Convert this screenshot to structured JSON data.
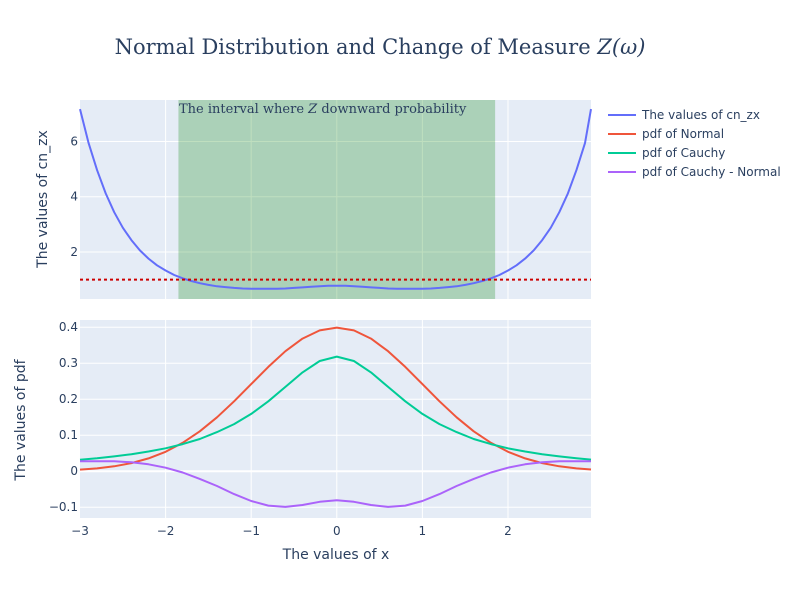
{
  "chart_data": {
    "title_prefix": "Normal Distribution and Change of Measure ",
    "title_math": "Z(ω)",
    "xlabel": "The values of x",
    "xlim": [
      -3,
      2.97
    ],
    "xticks": [
      -3,
      -2,
      -1,
      0,
      1,
      2
    ],
    "xtick_labels": [
      "−3",
      "−2",
      "−1",
      "0",
      "1",
      "2"
    ],
    "legend_position": "top-right",
    "grid": true,
    "colors": {
      "plot_bg": "#e5ecf6",
      "cn_zx": "#636efa",
      "normal": "#ef553b",
      "cauchy": "#00cc96",
      "diff": "#ab63fa",
      "threshold": "#cc0000",
      "band": "rgba(0,128,0,0.25)"
    },
    "legend": [
      {
        "label": "The values of cn_zx",
        "color": "#636efa"
      },
      {
        "label": "pdf of Normal",
        "color": "#ef553b"
      },
      {
        "label": "pdf of Cauchy",
        "color": "#00cc96"
      },
      {
        "label": "pdf of Cauchy - Normal",
        "color": "#ab63fa"
      }
    ],
    "subplots": [
      {
        "type": "line",
        "ylabel": "The values of cn_zx",
        "ylim": [
          0.3,
          7.5
        ],
        "yticks": [
          2,
          4,
          6
        ],
        "ytick_labels": [
          "2",
          "4",
          "6"
        ],
        "threshold_y": 1.0,
        "band_x": [
          -1.85,
          1.85
        ],
        "annotation_prefix": "The interval where ",
        "annotation_math": "Z",
        "annotation_suffix": " downward probability",
        "series": [
          {
            "name": "The values of cn_zx",
            "color": "#636efa",
            "x": [
              -3.0,
              -2.9,
              -2.8,
              -2.7,
              -2.6,
              -2.5,
              -2.4,
              -2.3,
              -2.2,
              -2.1,
              -2.0,
              -1.9,
              -1.8,
              -1.7,
              -1.6,
              -1.5,
              -1.4,
              -1.3,
              -1.2,
              -1.1,
              -1.0,
              -0.9,
              -0.8,
              -0.7,
              -0.6,
              -0.5,
              -0.4,
              -0.3,
              -0.2,
              -0.1,
              0.0,
              0.1,
              0.2,
              0.3,
              0.4,
              0.5,
              0.6,
              0.7,
              0.8,
              0.9,
              1.0,
              1.1,
              1.2,
              1.3,
              1.4,
              1.5,
              1.6,
              1.7,
              1.8,
              1.9,
              2.0,
              2.1,
              2.2,
              2.3,
              2.4,
              2.5,
              2.6,
              2.7,
              2.8,
              2.9,
              2.97
            ],
            "values": [
              7.17,
              5.94,
              4.96,
              4.12,
              3.44,
              2.88,
              2.43,
              2.06,
              1.76,
              1.52,
              1.33,
              1.17,
              1.05,
              0.95,
              0.87,
              0.81,
              0.76,
              0.73,
              0.7,
              0.68,
              0.67,
              0.67,
              0.67,
              0.67,
              0.68,
              0.7,
              0.72,
              0.74,
              0.76,
              0.78,
              0.78,
              0.78,
              0.76,
              0.74,
              0.72,
              0.7,
              0.68,
              0.67,
              0.67,
              0.67,
              0.67,
              0.68,
              0.7,
              0.73,
              0.76,
              0.81,
              0.87,
              0.95,
              1.05,
              1.17,
              1.33,
              1.52,
              1.76,
              2.06,
              2.43,
              2.88,
              3.44,
              4.12,
              4.96,
              5.94,
              7.17
            ]
          }
        ]
      },
      {
        "type": "line",
        "ylabel": "The values of pdf",
        "ylim": [
          -0.13,
          0.42
        ],
        "yticks": [
          -0.1,
          0,
          0.1,
          0.2,
          0.3,
          0.4
        ],
        "ytick_labels": [
          "−0.1",
          "0",
          "0.1",
          "0.2",
          "0.3",
          "0.4"
        ],
        "series": [
          {
            "name": "pdf of Normal",
            "color": "#ef553b",
            "x": [
              -3.0,
              -2.8,
              -2.6,
              -2.4,
              -2.2,
              -2.0,
              -1.8,
              -1.6,
              -1.4,
              -1.2,
              -1.0,
              -0.8,
              -0.6,
              -0.4,
              -0.2,
              0.0,
              0.2,
              0.4,
              0.6,
              0.8,
              1.0,
              1.2,
              1.4,
              1.6,
              1.8,
              2.0,
              2.2,
              2.4,
              2.6,
              2.8,
              2.97
            ],
            "values": [
              0.0044,
              0.0079,
              0.0136,
              0.0224,
              0.0355,
              0.054,
              0.079,
              0.1109,
              0.1497,
              0.1942,
              0.242,
              0.2897,
              0.3332,
              0.3683,
              0.391,
              0.3989,
              0.391,
              0.3683,
              0.3332,
              0.2897,
              0.242,
              0.1942,
              0.1497,
              0.1109,
              0.079,
              0.054,
              0.0355,
              0.0224,
              0.0136,
              0.0079,
              0.0048
            ]
          },
          {
            "name": "pdf of Cauchy",
            "color": "#00cc96",
            "x": [
              -3.0,
              -2.8,
              -2.6,
              -2.4,
              -2.2,
              -2.0,
              -1.8,
              -1.6,
              -1.4,
              -1.2,
              -1.0,
              -0.8,
              -0.6,
              -0.4,
              -0.2,
              0.0,
              0.2,
              0.4,
              0.6,
              0.8,
              1.0,
              1.2,
              1.4,
              1.6,
              1.8,
              2.0,
              2.2,
              2.4,
              2.6,
              2.8,
              2.97
            ],
            "values": [
              0.0318,
              0.0358,
              0.0411,
              0.0471,
              0.0547,
              0.0637,
              0.0754,
              0.0894,
              0.1085,
              0.1307,
              0.1592,
              0.1941,
              0.2341,
              0.2744,
              0.3061,
              0.3183,
              0.3061,
              0.2744,
              0.2341,
              0.1941,
              0.1592,
              0.1307,
              0.1085,
              0.0894,
              0.0754,
              0.0637,
              0.0547,
              0.0471,
              0.0411,
              0.0358,
              0.0322
            ]
          },
          {
            "name": "pdf of Cauchy - Normal",
            "color": "#ab63fa",
            "x": [
              -3.0,
              -2.8,
              -2.6,
              -2.4,
              -2.2,
              -2.0,
              -1.8,
              -1.6,
              -1.4,
              -1.2,
              -1.0,
              -0.8,
              -0.6,
              -0.4,
              -0.2,
              0.0,
              0.2,
              0.4,
              0.6,
              0.8,
              1.0,
              1.2,
              1.4,
              1.6,
              1.8,
              2.0,
              2.2,
              2.4,
              2.6,
              2.8,
              2.97
            ],
            "values": [
              0.0274,
              0.0279,
              0.0275,
              0.0247,
              0.0192,
              0.0097,
              -0.0036,
              -0.0215,
              -0.0412,
              -0.0635,
              -0.0828,
              -0.0956,
              -0.0991,
              -0.0939,
              -0.0849,
              -0.0806,
              -0.0849,
              -0.0939,
              -0.0991,
              -0.0956,
              -0.0828,
              -0.0635,
              -0.0412,
              -0.0215,
              -0.0036,
              0.0097,
              0.0192,
              0.0247,
              0.0275,
              0.0279,
              0.0274
            ]
          }
        ]
      }
    ]
  }
}
